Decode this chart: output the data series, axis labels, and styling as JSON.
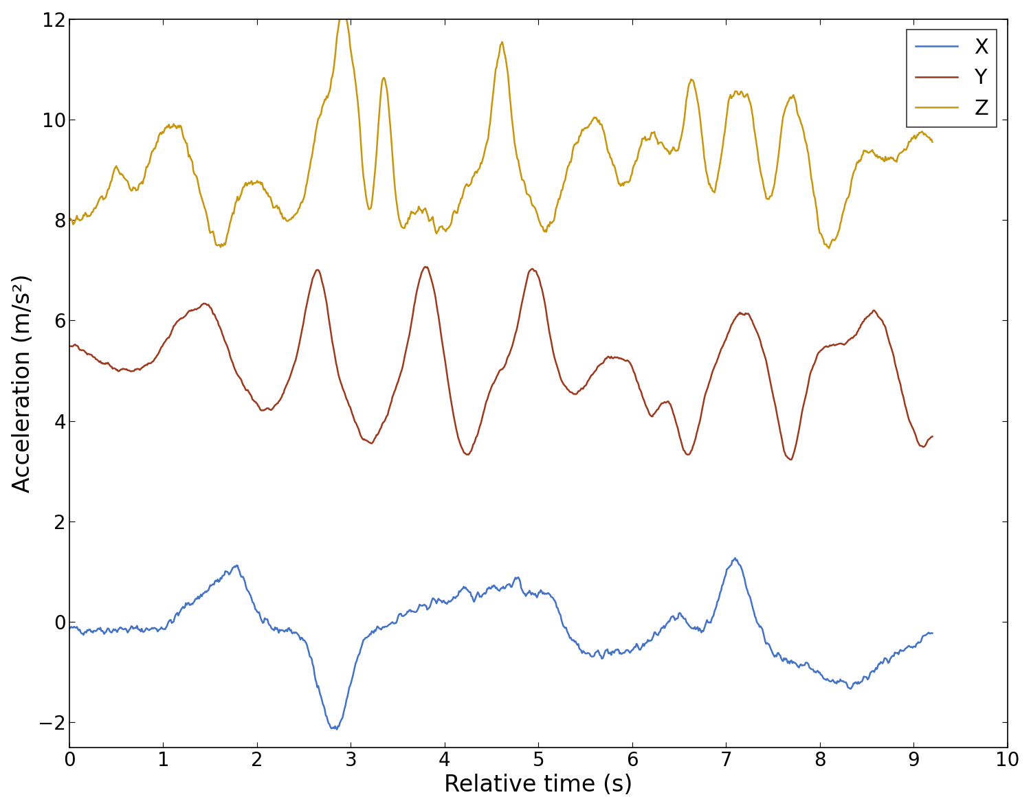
{
  "title": "",
  "xlabel": "Relative time (s)",
  "ylabel": "Acceleration (m/s²)",
  "xlim": [
    0,
    10
  ],
  "ylim": [
    -2.5,
    12
  ],
  "yticks": [
    -2,
    0,
    2,
    4,
    6,
    8,
    10,
    12
  ],
  "xticks": [
    0,
    1,
    2,
    3,
    4,
    5,
    6,
    7,
    8,
    9,
    10
  ],
  "x_color": "#4472C4",
  "y_color": "#9B3A1E",
  "z_color": "#C8960C",
  "line_width": 1.8,
  "legend_fontsize": 22,
  "axis_label_fontsize": 24,
  "tick_fontsize": 20,
  "background_color": "#ffffff"
}
